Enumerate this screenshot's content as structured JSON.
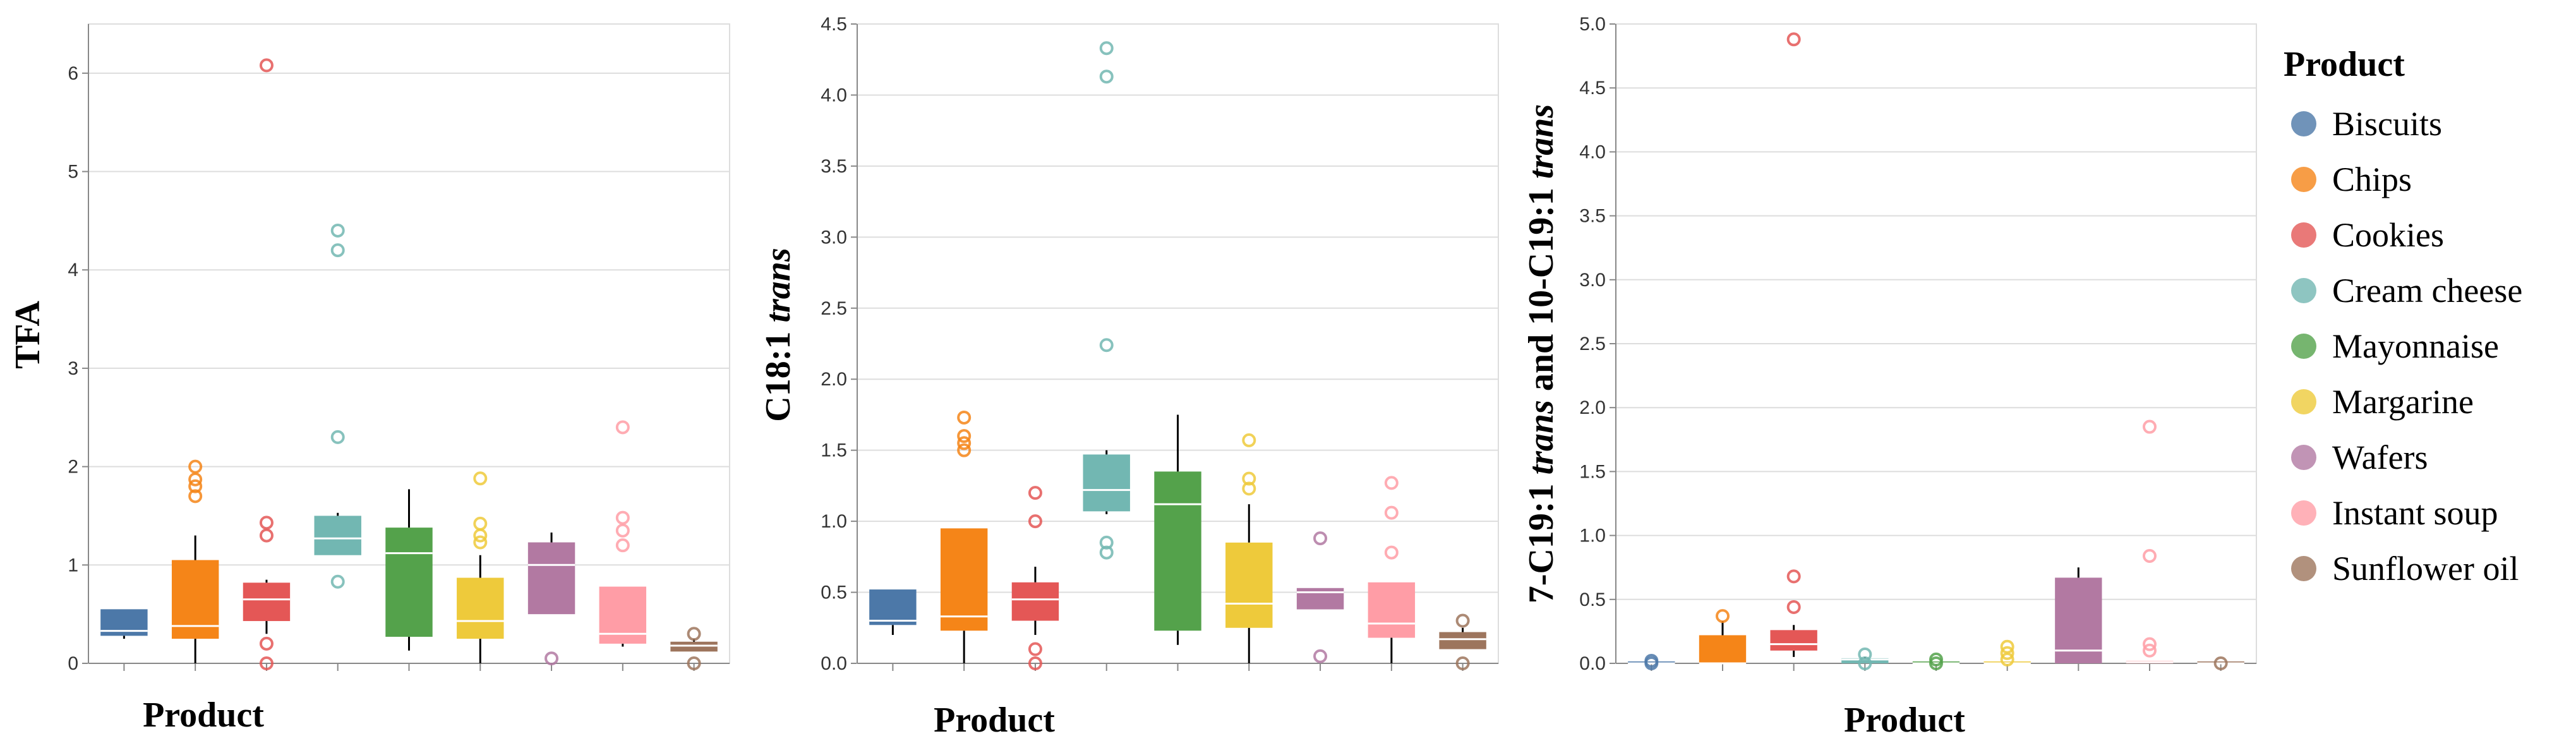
{
  "chart_data": [
    {
      "type": "boxplot",
      "title": "",
      "xlabel": "Product",
      "ylabel": "TFA",
      "ylim": [
        0,
        6.5
      ],
      "yticks": [
        0,
        1,
        2,
        3,
        4,
        5,
        6
      ],
      "ytick_labels": [
        "0",
        "1",
        "2",
        "3",
        "4",
        "5",
        "6"
      ],
      "grid": true,
      "categories": [
        "Biscuits",
        "Chips",
        "Cookies",
        "Cream cheese",
        "Mayonnaise",
        "Margarine",
        "Wafers",
        "Instant soup",
        "Sunflower oil"
      ],
      "boxes": [
        {
          "product": "Biscuits",
          "whisker_low": 0.25,
          "q1": 0.28,
          "median": 0.33,
          "q3": 0.55,
          "whisker_high": 0.55,
          "outliers": []
        },
        {
          "product": "Chips",
          "whisker_low": 0.0,
          "q1": 0.25,
          "median": 0.38,
          "q3": 1.05,
          "whisker_high": 1.3,
          "outliers": [
            1.7,
            1.8,
            1.87,
            2.0
          ]
        },
        {
          "product": "Cookies",
          "whisker_low": 0.3,
          "q1": 0.43,
          "median": 0.65,
          "q3": 0.82,
          "whisker_high": 0.85,
          "outliers": [
            0.0,
            0.2,
            1.3,
            1.43,
            6.08
          ]
        },
        {
          "product": "Cream cheese",
          "whisker_low": 1.1,
          "q1": 1.1,
          "median": 1.27,
          "q3": 1.5,
          "whisker_high": 1.53,
          "outliers": [
            0.83,
            2.3,
            4.2,
            4.4
          ]
        },
        {
          "product": "Mayonnaise",
          "whisker_low": 0.13,
          "q1": 0.27,
          "median": 1.12,
          "q3": 1.38,
          "whisker_high": 1.77,
          "outliers": []
        },
        {
          "product": "Margarine",
          "whisker_low": 0.0,
          "q1": 0.25,
          "median": 0.43,
          "q3": 0.87,
          "whisker_high": 1.1,
          "outliers": [
            1.23,
            1.3,
            1.42,
            1.88
          ]
        },
        {
          "product": "Wafers",
          "whisker_low": 0.5,
          "q1": 0.5,
          "median": 1.0,
          "q3": 1.23,
          "whisker_high": 1.33,
          "outliers": [
            0.05
          ]
        },
        {
          "product": "Instant soup",
          "whisker_low": 0.17,
          "q1": 0.2,
          "median": 0.3,
          "q3": 0.78,
          "whisker_high": 0.78,
          "outliers": [
            1.2,
            1.35,
            1.48,
            2.4
          ]
        },
        {
          "product": "Sunflower oil",
          "whisker_low": 0.12,
          "q1": 0.12,
          "median": 0.18,
          "q3": 0.22,
          "whisker_high": 0.25,
          "outliers": [
            0.0,
            0.3
          ]
        }
      ]
    },
    {
      "type": "boxplot",
      "title": "",
      "xlabel": "Product",
      "ylabel": "C18:1 trans",
      "ylabel_plain": "C18:1 ",
      "ylabel_italic": "trans",
      "ylim": [
        0,
        4.5
      ],
      "yticks": [
        0,
        0.5,
        1.0,
        1.5,
        2.0,
        2.5,
        3.0,
        3.5,
        4.0,
        4.5
      ],
      "ytick_labels": [
        "0.0",
        "0.5",
        "1.0",
        "1.5",
        "2.0",
        "2.5",
        "3.0",
        "3.5",
        "4.0",
        "4.5"
      ],
      "grid": true,
      "categories": [
        "Biscuits",
        "Chips",
        "Cookies",
        "Cream cheese",
        "Mayonnaise",
        "Margarine",
        "Wafers",
        "Instant soup",
        "Sunflower oil"
      ],
      "boxes": [
        {
          "product": "Biscuits",
          "whisker_low": 0.2,
          "q1": 0.27,
          "median": 0.3,
          "q3": 0.52,
          "whisker_high": 0.52,
          "outliers": []
        },
        {
          "product": "Chips",
          "whisker_low": 0.0,
          "q1": 0.23,
          "median": 0.33,
          "q3": 0.95,
          "whisker_high": 0.95,
          "outliers": [
            1.5,
            1.55,
            1.6,
            1.73
          ]
        },
        {
          "product": "Cookies",
          "whisker_low": 0.2,
          "q1": 0.3,
          "median": 0.45,
          "q3": 0.57,
          "whisker_high": 0.68,
          "outliers": [
            0.0,
            0.1,
            1.0,
            1.2
          ]
        },
        {
          "product": "Cream cheese",
          "whisker_low": 1.05,
          "q1": 1.07,
          "median": 1.22,
          "q3": 1.47,
          "whisker_high": 1.5,
          "outliers": [
            0.78,
            0.85,
            2.24,
            4.13,
            4.33
          ]
        },
        {
          "product": "Mayonnaise",
          "whisker_low": 0.13,
          "q1": 0.23,
          "median": 1.12,
          "q3": 1.35,
          "whisker_high": 1.75,
          "outliers": []
        },
        {
          "product": "Margarine",
          "whisker_low": 0.0,
          "q1": 0.25,
          "median": 0.42,
          "q3": 0.85,
          "whisker_high": 1.12,
          "outliers": [
            1.23,
            1.3,
            1.57
          ]
        },
        {
          "product": "Wafers",
          "whisker_low": 0.38,
          "q1": 0.38,
          "median": 0.5,
          "q3": 0.53,
          "whisker_high": 0.53,
          "outliers": [
            0.05,
            0.88
          ]
        },
        {
          "product": "Instant soup",
          "whisker_low": 0.0,
          "q1": 0.18,
          "median": 0.28,
          "q3": 0.57,
          "whisker_high": 0.57,
          "outliers": [
            0.78,
            1.06,
            1.27
          ]
        },
        {
          "product": "Sunflower oil",
          "whisker_low": 0.1,
          "q1": 0.1,
          "median": 0.17,
          "q3": 0.22,
          "whisker_high": 0.25,
          "outliers": [
            0.0,
            0.3
          ]
        }
      ]
    },
    {
      "type": "boxplot",
      "title": "",
      "xlabel": "Product",
      "ylabel": "7-C19:1 trans and 10-C19:1 trans",
      "ylabel_parts": [
        {
          "text": "7-C19:1 ",
          "italic": false
        },
        {
          "text": "trans",
          "italic": true
        },
        {
          "text": " and 10-C19:1 ",
          "italic": false
        },
        {
          "text": "trans",
          "italic": true
        }
      ],
      "ylim": [
        0,
        5.0
      ],
      "yticks": [
        0,
        0.5,
        1.0,
        1.5,
        2.0,
        2.5,
        3.0,
        3.5,
        4.0,
        4.5,
        5.0
      ],
      "ytick_labels": [
        "0.0",
        "0.5",
        "1.0",
        "1.5",
        "2.0",
        "2.5",
        "3.0",
        "3.5",
        "4.0",
        "4.5",
        "5.0"
      ],
      "grid": true,
      "categories": [
        "Biscuits",
        "Chips",
        "Cookies",
        "Cream cheese",
        "Mayonnaise",
        "Margarine",
        "Wafers",
        "Instant soup",
        "Sunflower oil"
      ],
      "boxes": [
        {
          "product": "Biscuits",
          "whisker_low": 0.0,
          "q1": 0.0,
          "median": 0.0,
          "q3": 0.0,
          "whisker_high": 0.0,
          "outliers": [
            0.0,
            0.02
          ]
        },
        {
          "product": "Chips",
          "whisker_low": 0.0,
          "q1": 0.0,
          "median": 0.0,
          "q3": 0.22,
          "whisker_high": 0.33,
          "outliers": [
            0.37
          ]
        },
        {
          "product": "Cookies",
          "whisker_low": 0.05,
          "q1": 0.1,
          "median": 0.15,
          "q3": 0.26,
          "whisker_high": 0.3,
          "outliers": [
            0.44,
            0.68,
            4.88
          ]
        },
        {
          "product": "Cream cheese",
          "whisker_low": 0.0,
          "q1": 0.0,
          "median": 0.03,
          "q3": 0.04,
          "whisker_high": 0.05,
          "outliers": [
            0.0,
            0.07
          ]
        },
        {
          "product": "Mayonnaise",
          "whisker_low": 0.0,
          "q1": 0.0,
          "median": 0.0,
          "q3": 0.0,
          "whisker_high": 0.0,
          "outliers": [
            0.0,
            0.03
          ]
        },
        {
          "product": "Margarine",
          "whisker_low": 0.0,
          "q1": 0.0,
          "median": 0.0,
          "q3": 0.0,
          "whisker_high": 0.0,
          "outliers": [
            0.03,
            0.08,
            0.13
          ]
        },
        {
          "product": "Wafers",
          "whisker_low": 0.0,
          "q1": 0.0,
          "median": 0.1,
          "q3": 0.67,
          "whisker_high": 0.75,
          "outliers": []
        },
        {
          "product": "Instant soup",
          "whisker_low": 0.0,
          "q1": 0.0,
          "median": 0.01,
          "q3": 0.02,
          "whisker_high": 0.02,
          "outliers": [
            0.1,
            0.15,
            0.84,
            1.85
          ]
        },
        {
          "product": "Sunflower oil",
          "whisker_low": 0.0,
          "q1": 0.0,
          "median": 0.0,
          "q3": 0.0,
          "whisker_high": 0.0,
          "outliers": [
            0.0
          ]
        }
      ]
    }
  ],
  "legend": {
    "title": "Product",
    "placement": "right",
    "items": [
      {
        "label": "Biscuits",
        "color": "#4c78a8"
      },
      {
        "label": "Chips",
        "color": "#f58518"
      },
      {
        "label": "Cookies",
        "color": "#e45756"
      },
      {
        "label": "Cream cheese",
        "color": "#72b7b2"
      },
      {
        "label": "Mayonnaise",
        "color": "#54a24b"
      },
      {
        "label": "Margarine",
        "color": "#eeca3b"
      },
      {
        "label": "Wafers",
        "color": "#b279a2"
      },
      {
        "label": "Instant soup",
        "color": "#ff9da6"
      },
      {
        "label": "Sunflower oil",
        "color": "#9d755d"
      }
    ]
  },
  "colors": {
    "grid": "#dddddd",
    "axis": "#888888",
    "whisker": "#000000",
    "median": "#ffffff"
  }
}
